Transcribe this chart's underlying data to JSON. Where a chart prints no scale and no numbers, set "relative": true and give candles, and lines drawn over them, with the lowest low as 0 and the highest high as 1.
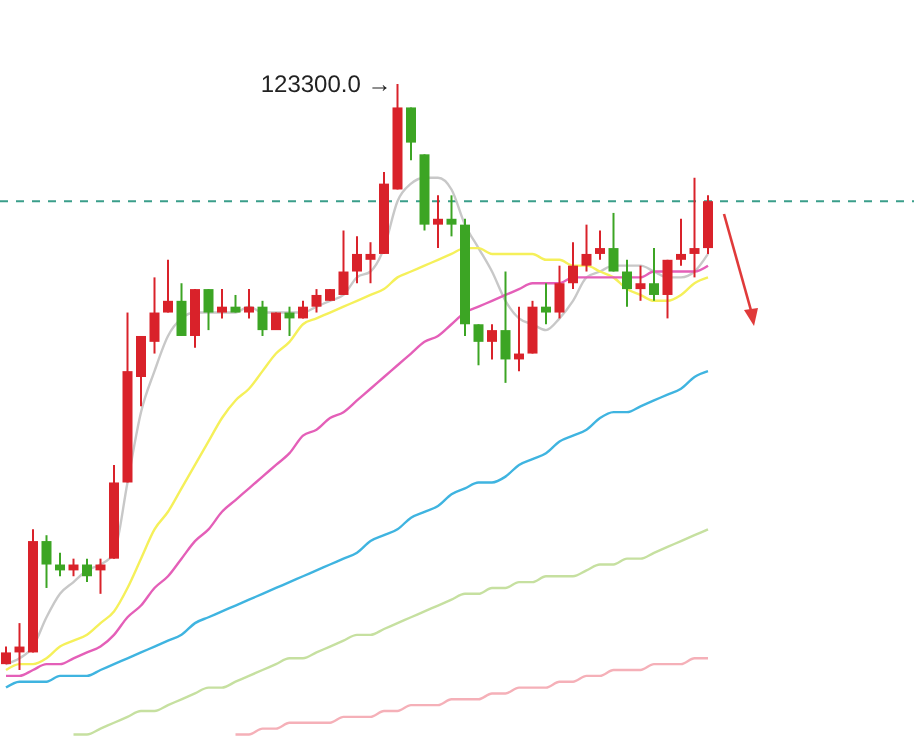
{
  "chart_data": {
    "type": "candlestick",
    "relative": true,
    "categories": [
      null,
      null,
      null,
      null,
      null,
      null,
      null,
      null,
      null,
      null,
      null,
      null,
      null,
      null,
      null,
      null,
      null,
      null,
      null,
      null,
      null,
      null,
      null,
      null,
      null,
      null,
      null,
      null,
      null,
      null,
      null,
      null,
      null,
      null,
      null,
      null,
      null,
      null,
      null,
      null,
      null,
      null,
      null,
      null,
      null,
      null,
      null,
      null,
      null,
      null,
      null,
      null,
      null
    ],
    "annotations": [
      "123300.0 →"
    ],
    "ref_lines": [
      {
        "axis": "y",
        "value": 0.8,
        "color": "#3a9e8a",
        "line_style": "dashed"
      }
    ],
    "series": [
      {
        "type": "line",
        "color": "#c8c8c8",
        "values": [
          0.01,
          0.02,
          0.04,
          0.09,
          0.13,
          0.15,
          0.17,
          0.18,
          0.2,
          0.32,
          0.44,
          0.51,
          0.57,
          0.6,
          0.61,
          0.61,
          0.61,
          0.61,
          0.62,
          0.61,
          0.61,
          0.61,
          0.61,
          0.62,
          0.63,
          0.64,
          0.67,
          0.68,
          0.72,
          0.8,
          0.83,
          0.84,
          0.84,
          0.82,
          0.76,
          0.72,
          0.68,
          0.63,
          0.6,
          0.59,
          0.58,
          0.6,
          0.63,
          0.67,
          0.68,
          0.69,
          0.69,
          0.69,
          0.68,
          0.67,
          0.67,
          0.68,
          0.71
        ]
      },
      {
        "type": "line",
        "color": "#f5f05a",
        "values": [
          0,
          0.01,
          0.01,
          0.02,
          0.04,
          0.05,
          0.06,
          0.08,
          0.1,
          0.14,
          0.19,
          0.24,
          0.27,
          0.31,
          0.35,
          0.39,
          0.43,
          0.46,
          0.48,
          0.51,
          0.54,
          0.56,
          0.59,
          0.6,
          0.61,
          0.62,
          0.63,
          0.64,
          0.65,
          0.67,
          0.68,
          0.69,
          0.7,
          0.71,
          0.72,
          0.72,
          0.71,
          0.71,
          0.71,
          0.71,
          0.7,
          0.7,
          0.69,
          0.69,
          0.68,
          0.67,
          0.65,
          0.64,
          0.63,
          0.63,
          0.64,
          0.66,
          0.67
        ]
      },
      {
        "type": "line",
        "color": "#e45fb8",
        "values": [
          -0.01,
          -0.01,
          0,
          0.01,
          0.01,
          0.02,
          0.03,
          0.04,
          0.06,
          0.09,
          0.11,
          0.14,
          0.16,
          0.19,
          0.22,
          0.24,
          0.27,
          0.29,
          0.31,
          0.33,
          0.35,
          0.37,
          0.4,
          0.41,
          0.43,
          0.44,
          0.46,
          0.48,
          0.5,
          0.52,
          0.54,
          0.56,
          0.57,
          0.59,
          0.61,
          0.62,
          0.63,
          0.64,
          0.65,
          0.66,
          0.66,
          0.66,
          0.67,
          0.67,
          0.67,
          0.67,
          0.67,
          0.67,
          0.68,
          0.68,
          0.68,
          0.68,
          0.69
        ]
      },
      {
        "type": "line",
        "color": "#3fb4e0",
        "values": [
          -0.03,
          -0.02,
          -0.02,
          -0.02,
          -0.01,
          -0.01,
          -0.01,
          0,
          0.01,
          0.02,
          0.03,
          0.04,
          0.05,
          0.06,
          0.08,
          0.09,
          0.1,
          0.11,
          0.12,
          0.13,
          0.14,
          0.15,
          0.16,
          0.17,
          0.18,
          0.19,
          0.2,
          0.22,
          0.23,
          0.24,
          0.26,
          0.27,
          0.28,
          0.3,
          0.31,
          0.32,
          0.32,
          0.33,
          0.35,
          0.36,
          0.37,
          0.39,
          0.4,
          0.41,
          0.43,
          0.44,
          0.44,
          0.45,
          0.46,
          0.47,
          0.48,
          0.5,
          0.51
        ]
      },
      {
        "type": "line",
        "color": "#c6e0a0",
        "values": [
          null,
          null,
          null,
          null,
          null,
          -0.11,
          -0.11,
          -0.1,
          -0.09,
          -0.08,
          -0.07,
          -0.07,
          -0.06,
          -0.05,
          -0.04,
          -0.03,
          -0.03,
          -0.02,
          -0.01,
          0,
          0.01,
          0.02,
          0.02,
          0.03,
          0.04,
          0.05,
          0.06,
          0.06,
          0.07,
          0.08,
          0.09,
          0.1,
          0.11,
          0.12,
          0.13,
          0.13,
          0.14,
          0.14,
          0.15,
          0.15,
          0.16,
          0.16,
          0.16,
          0.17,
          0.18,
          0.18,
          0.19,
          0.19,
          0.2,
          0.21,
          0.22,
          0.23,
          0.24
        ]
      },
      {
        "type": "line",
        "color": "#f5b0b8",
        "values": [
          null,
          null,
          null,
          null,
          null,
          null,
          null,
          null,
          null,
          null,
          null,
          null,
          null,
          null,
          null,
          null,
          null,
          -0.11,
          -0.11,
          -0.1,
          -0.1,
          -0.09,
          -0.09,
          -0.09,
          -0.09,
          -0.08,
          -0.08,
          -0.08,
          -0.07,
          -0.07,
          -0.06,
          -0.06,
          -0.06,
          -0.05,
          -0.05,
          -0.05,
          -0.04,
          -0.04,
          -0.03,
          -0.03,
          -0.03,
          -0.02,
          -0.02,
          -0.01,
          -0.01,
          0,
          0,
          0,
          0.01,
          0.01,
          0.01,
          0.02,
          0.02
        ]
      },
      {
        "colors": [
          "#d9222a",
          "#d9222a",
          "#d9222a",
          "#3ca524",
          "#3ca524",
          "#d9222a",
          "#3ca524",
          "#d9222a",
          "#d9222a",
          "#d9222a",
          "#d9222a",
          "#d9222a",
          "#d9222a",
          "#3ca524",
          "#d9222a",
          "#3ca524",
          "#d9222a",
          "#3ca524",
          "#d9222a",
          "#3ca524",
          "#d9222a",
          "#3ca524",
          "#d9222a",
          "#d9222a",
          "#d9222a",
          "#d9222a",
          "#d9222a",
          "#d9222a",
          "#d9222a",
          "#d9222a",
          "#3ca524",
          "#3ca524",
          "#d9222a",
          "#3ca524",
          "#3ca524",
          "#3ca524",
          "#d9222a",
          "#3ca524",
          "#d9222a",
          "#d9222a",
          "#3ca524",
          "#d9222a",
          "#d9222a",
          "#d9222a",
          "#d9222a",
          "#3ca524",
          "#3ca524",
          "#d9222a",
          "#3ca524",
          "#d9222a",
          "#d9222a",
          "#d9222a",
          "#d9222a"
        ],
        "ohlc": [
          [
            0.01,
            0.04,
            0.01,
            0.03
          ],
          [
            0.03,
            0.08,
            0,
            0.04
          ],
          [
            0.03,
            0.24,
            0.03,
            0.22
          ],
          [
            0.22,
            0.23,
            0.14,
            0.18
          ],
          [
            0.18,
            0.2,
            0.16,
            0.17
          ],
          [
            0.17,
            0.19,
            0.16,
            0.18
          ],
          [
            0.18,
            0.19,
            0.15,
            0.16
          ],
          [
            0.17,
            0.19,
            0.13,
            0.18
          ],
          [
            0.19,
            0.35,
            0.19,
            0.32
          ],
          [
            0.32,
            0.61,
            0.32,
            0.51
          ],
          [
            0.5,
            0.57,
            0.45,
            0.57
          ],
          [
            0.56,
            0.67,
            0.54,
            0.61
          ],
          [
            0.61,
            0.7,
            0.61,
            0.63
          ],
          [
            0.63,
            0.66,
            0.57,
            0.57
          ],
          [
            0.57,
            0.65,
            0.55,
            0.65
          ],
          [
            0.65,
            0.65,
            0.58,
            0.61
          ],
          [
            0.61,
            0.65,
            0.6,
            0.62
          ],
          [
            0.62,
            0.64,
            0.61,
            0.61
          ],
          [
            0.61,
            0.65,
            0.6,
            0.62
          ],
          [
            0.62,
            0.63,
            0.57,
            0.58
          ],
          [
            0.58,
            0.61,
            0.58,
            0.61
          ],
          [
            0.61,
            0.62,
            0.57,
            0.6
          ],
          [
            0.6,
            0.63,
            0.6,
            0.62
          ],
          [
            0.62,
            0.65,
            0.61,
            0.64
          ],
          [
            0.63,
            0.65,
            0.63,
            0.65
          ],
          [
            0.64,
            0.75,
            0.64,
            0.68
          ],
          [
            0.68,
            0.74,
            0.66,
            0.71
          ],
          [
            0.7,
            0.73,
            0.66,
            0.71
          ],
          [
            0.71,
            0.85,
            0.71,
            0.83
          ],
          [
            0.82,
            1,
            0.82,
            0.96
          ],
          [
            0.96,
            0.96,
            0.87,
            0.9
          ],
          [
            0.88,
            0.88,
            0.75,
            0.76
          ],
          [
            0.76,
            0.81,
            0.72,
            0.77
          ],
          [
            0.77,
            0.81,
            0.74,
            0.76
          ],
          [
            0.76,
            0.77,
            0.57,
            0.59
          ],
          [
            0.59,
            0.59,
            0.52,
            0.56
          ],
          [
            0.56,
            0.59,
            0.53,
            0.58
          ],
          [
            0.58,
            0.68,
            0.49,
            0.53
          ],
          [
            0.53,
            0.62,
            0.51,
            0.54
          ],
          [
            0.54,
            0.63,
            0.54,
            0.62
          ],
          [
            0.62,
            0.66,
            0.59,
            0.61
          ],
          [
            0.61,
            0.69,
            0.6,
            0.66
          ],
          [
            0.66,
            0.73,
            0.65,
            0.69
          ],
          [
            0.69,
            0.76,
            0.68,
            0.71
          ],
          [
            0.71,
            0.75,
            0.7,
            0.72
          ],
          [
            0.72,
            0.78,
            0.68,
            0.68
          ],
          [
            0.68,
            0.7,
            0.62,
            0.65
          ],
          [
            0.65,
            0.69,
            0.63,
            0.66
          ],
          [
            0.66,
            0.72,
            0.63,
            0.64
          ],
          [
            0.64,
            0.7,
            0.6,
            0.7
          ],
          [
            0.7,
            0.77,
            0.69,
            0.71
          ],
          [
            0.71,
            0.84,
            0.67,
            0.72
          ],
          [
            0.72,
            0.81,
            0.71,
            0.8
          ]
        ]
      }
    ]
  }
}
